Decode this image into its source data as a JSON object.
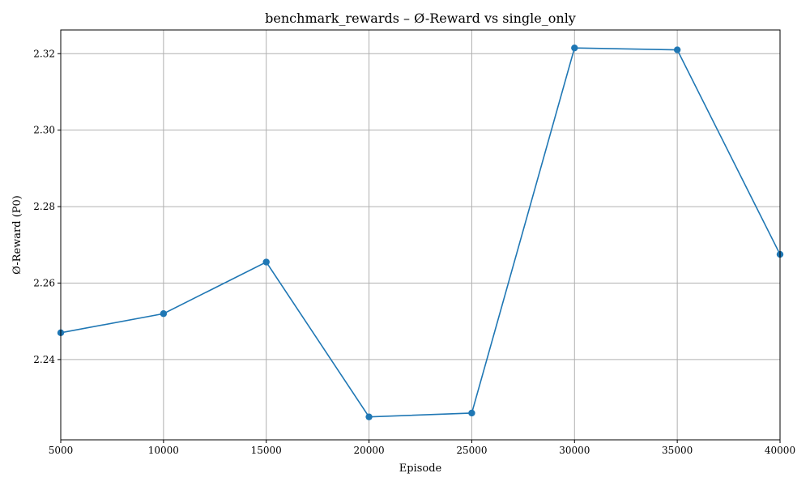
{
  "chart_data": {
    "type": "line",
    "title": "benchmark_rewards – Ø-Reward vs single_only",
    "xlabel": "Episode",
    "ylabel": "Ø-Reward (P0)",
    "x": [
      5000,
      10000,
      15000,
      20000,
      25000,
      30000,
      35000,
      40000
    ],
    "series": [
      {
        "values": [
          2.247,
          2.252,
          2.2655,
          2.225,
          2.226,
          2.3215,
          2.321,
          2.2675
        ],
        "color": "#1f77b4",
        "marker": "circle"
      }
    ],
    "xlim": [
      5000,
      40000
    ],
    "ylim": [
      2.219,
      2.3262
    ],
    "xticks": [
      5000,
      10000,
      15000,
      20000,
      25000,
      30000,
      35000,
      40000
    ],
    "yticks": [
      2.24,
      2.26,
      2.28,
      2.3,
      2.32
    ],
    "ytick_labels": [
      "2.24",
      "2.26",
      "2.28",
      "2.30",
      "2.32"
    ],
    "grid": true
  }
}
